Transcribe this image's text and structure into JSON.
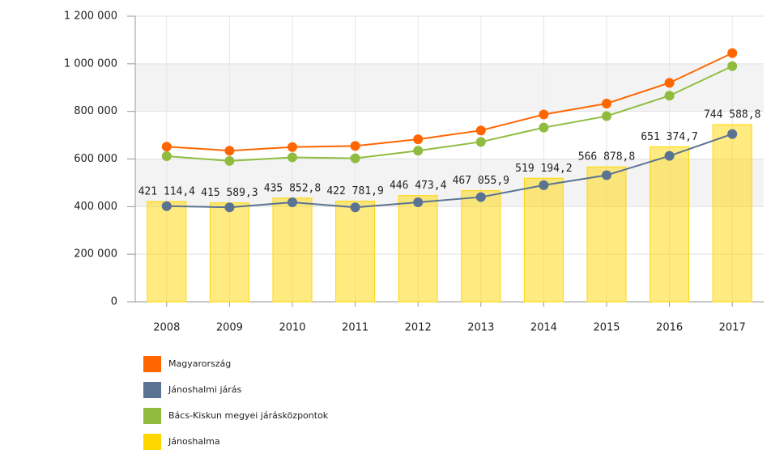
{
  "chart_data": {
    "type": "combo",
    "categories": [
      "2008",
      "2009",
      "2010",
      "2011",
      "2012",
      "2013",
      "2014",
      "2015",
      "2016",
      "2017"
    ],
    "ylim": [
      0,
      1200000
    ],
    "yticks": [
      0,
      {
        "value": 200000,
        "label": "200 000"
      },
      {
        "value": 400000,
        "label": "400 000"
      },
      {
        "value": 600000,
        "label": "600 000"
      },
      {
        "value": 800000,
        "label": "800 000"
      },
      {
        "value": 1000000,
        "label": "1 000 000"
      },
      {
        "value": 1200000,
        "label": "1 200 000"
      }
    ],
    "grid": true,
    "legend": "bottom-left",
    "series": [
      {
        "name": "Magyarország",
        "type": "line",
        "color": "#ff6600",
        "values": [
          652000,
          635000,
          650000,
          655000,
          683000,
          720000,
          787000,
          833000,
          920000,
          1045000
        ]
      },
      {
        "name": "Jánoshalmi járás",
        "type": "line",
        "color": "#5b7393",
        "values": [
          402000,
          397000,
          418000,
          397000,
          418000,
          440000,
          490000,
          532000,
          613000,
          705000
        ]
      },
      {
        "name": "Bács-Kiskun megyei járásközpontok",
        "type": "line",
        "color": "#8fbc3f",
        "values": [
          612000,
          592000,
          607000,
          603000,
          635000,
          672000,
          732000,
          780000,
          866000,
          990000
        ]
      },
      {
        "name": "Jánoshalma",
        "type": "bar",
        "color": "#ffd700",
        "values": [
          421114.4,
          415589.3,
          435852.8,
          422781.9,
          446473.4,
          467055.9,
          519194.2,
          566878.8,
          651374.7,
          744588.8
        ],
        "value_labels": [
          "421 114,4",
          "415 589,3",
          "435 852,8",
          "422 781,9",
          "446 473,4",
          "467 055,9",
          "519 194,2",
          "566 878,8",
          "651 374,7",
          "744 588,8"
        ]
      }
    ]
  }
}
